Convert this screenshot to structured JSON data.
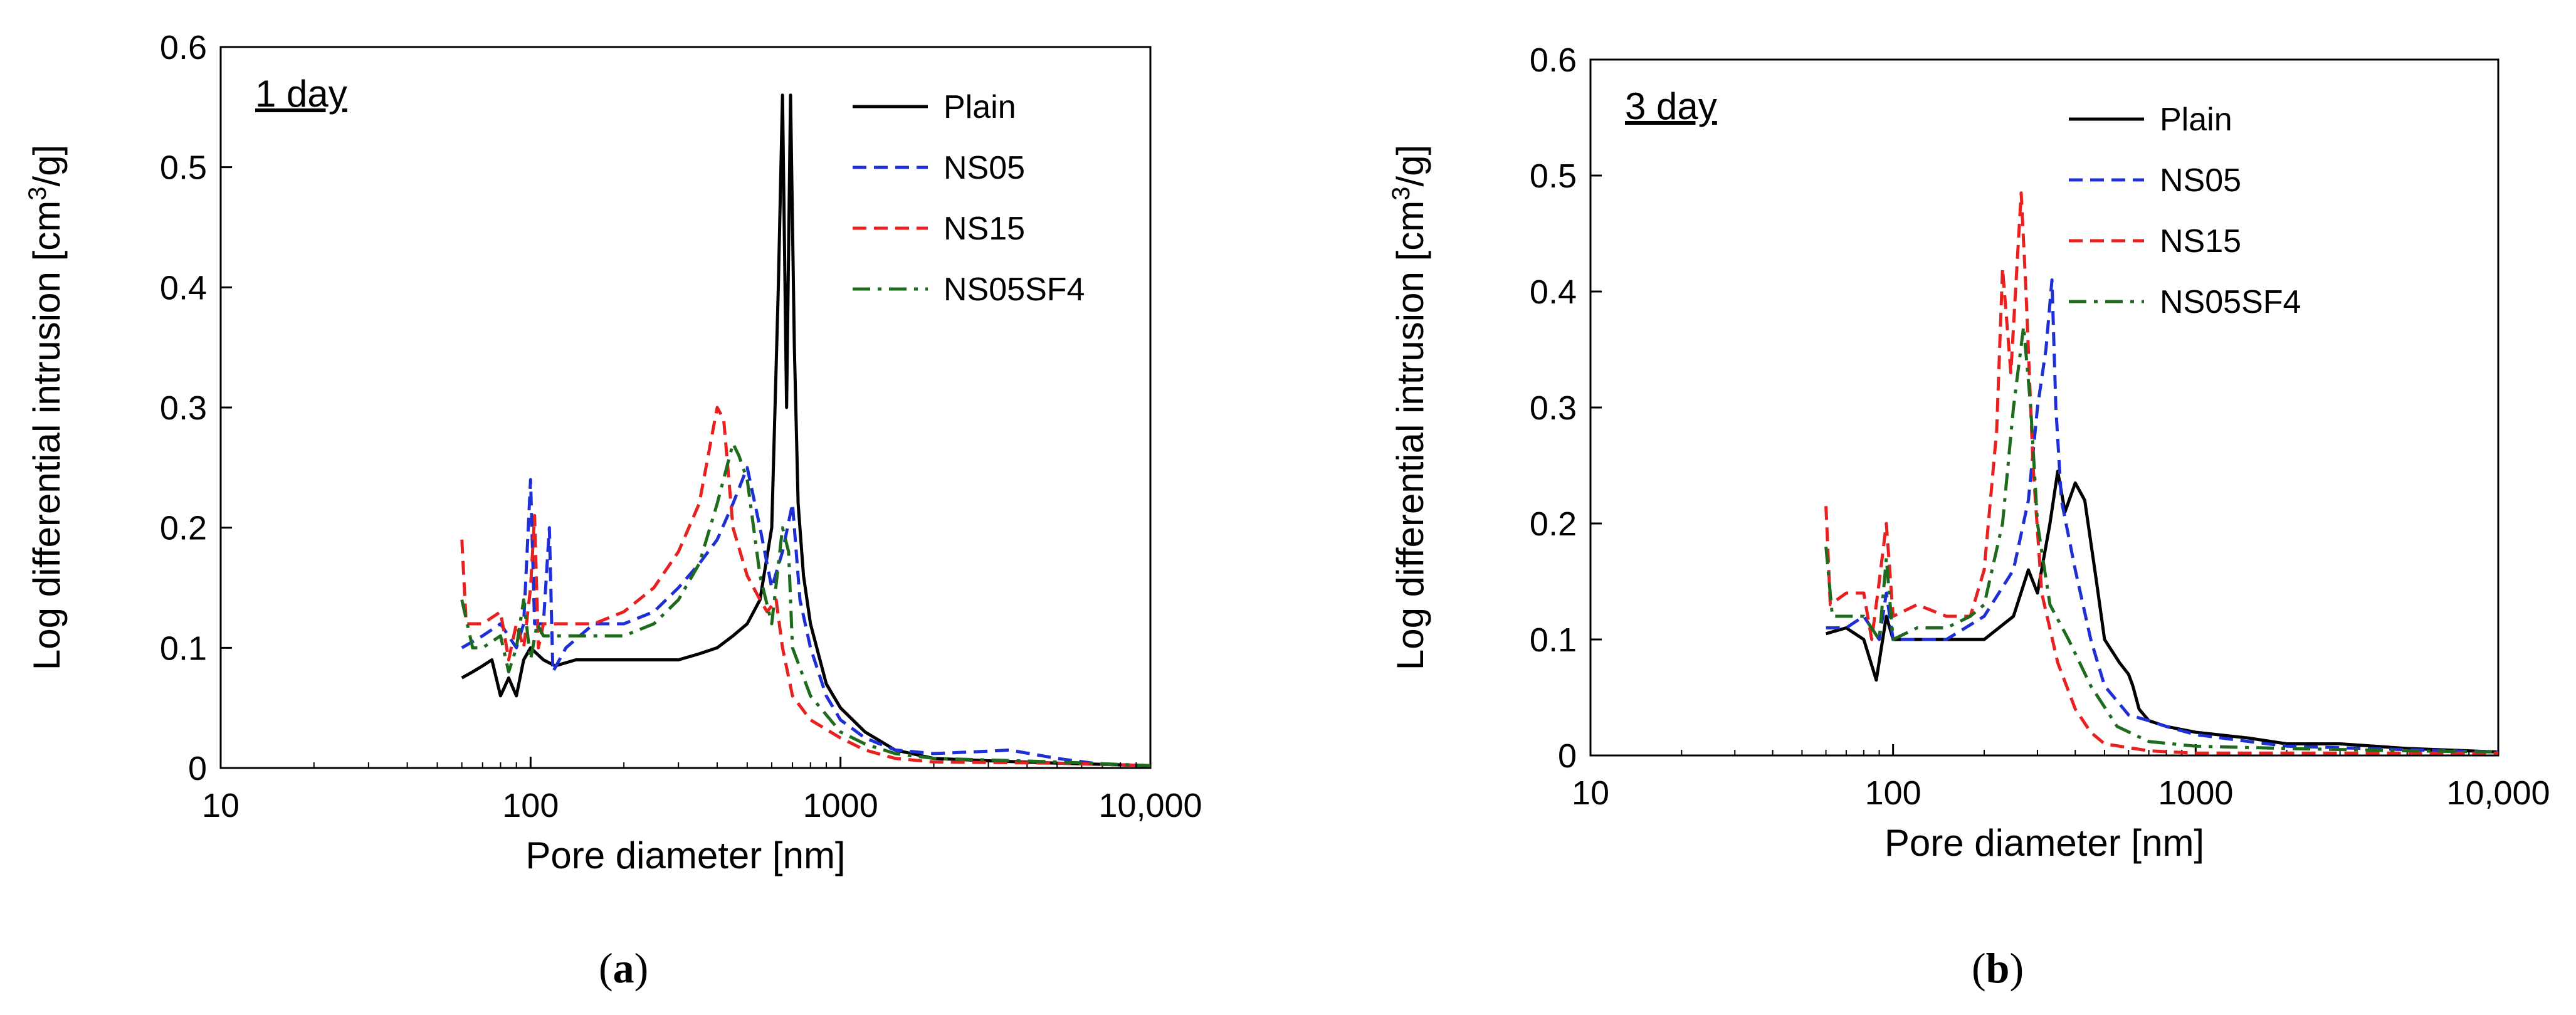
{
  "chart_data": [
    {
      "type": "line",
      "panel_label": "a",
      "annotation": "1 day",
      "xlabel": "Pore diameter [nm]",
      "ylabel_main": "Log differential intrusion [cm",
      "ylabel_sup": "3",
      "ylabel_tail": "/g]",
      "x_scale": "log",
      "xlim": [
        10,
        10000
      ],
      "ylim": [
        0,
        0.6
      ],
      "x_ticks": [
        10,
        100,
        1000,
        10000
      ],
      "x_tick_labels": [
        "10",
        "100",
        "1000",
        "10,000"
      ],
      "y_ticks": [
        0,
        0.1,
        0.2,
        0.3,
        0.4,
        0.5,
        0.6
      ],
      "y_tick_labels": [
        "0",
        "0.1",
        "0.2",
        "0.3",
        "0.4",
        "0.5",
        "0.6"
      ],
      "legend_position": "top-right",
      "series": [
        {
          "name": "Plain",
          "color": "#000000",
          "dash": "solid",
          "points": [
            [
              60,
              0.075
            ],
            [
              65,
              0.08
            ],
            [
              70,
              0.085
            ],
            [
              75,
              0.09
            ],
            [
              80,
              0.06
            ],
            [
              85,
              0.075
            ],
            [
              90,
              0.06
            ],
            [
              95,
              0.09
            ],
            [
              100,
              0.1
            ],
            [
              110,
              0.09
            ],
            [
              120,
              0.085
            ],
            [
              140,
              0.09
            ],
            [
              160,
              0.09
            ],
            [
              200,
              0.09
            ],
            [
              300,
              0.09
            ],
            [
              350,
              0.095
            ],
            [
              400,
              0.1
            ],
            [
              450,
              0.11
            ],
            [
              500,
              0.12
            ],
            [
              550,
              0.14
            ],
            [
              600,
              0.2
            ],
            [
              630,
              0.4
            ],
            [
              650,
              0.56
            ],
            [
              670,
              0.3
            ],
            [
              690,
              0.56
            ],
            [
              710,
              0.35
            ],
            [
              730,
              0.22
            ],
            [
              760,
              0.16
            ],
            [
              800,
              0.12
            ],
            [
              900,
              0.07
            ],
            [
              1000,
              0.05
            ],
            [
              1200,
              0.03
            ],
            [
              1500,
              0.015
            ],
            [
              2000,
              0.008
            ],
            [
              3000,
              0.006
            ],
            [
              5000,
              0.004
            ],
            [
              10000,
              0.002
            ]
          ]
        },
        {
          "name": "NS05",
          "color": "#1f2fd6",
          "dash": "dashed",
          "points": [
            [
              60,
              0.1
            ],
            [
              70,
              0.11
            ],
            [
              80,
              0.12
            ],
            [
              90,
              0.1
            ],
            [
              95,
              0.12
            ],
            [
              100,
              0.24
            ],
            [
              103,
              0.12
            ],
            [
              110,
              0.12
            ],
            [
              115,
              0.2
            ],
            [
              118,
              0.08
            ],
            [
              130,
              0.1
            ],
            [
              160,
              0.12
            ],
            [
              200,
              0.12
            ],
            [
              250,
              0.13
            ],
            [
              300,
              0.15
            ],
            [
              350,
              0.17
            ],
            [
              400,
              0.19
            ],
            [
              450,
              0.22
            ],
            [
              500,
              0.25
            ],
            [
              550,
              0.2
            ],
            [
              600,
              0.15
            ],
            [
              650,
              0.18
            ],
            [
              700,
              0.22
            ],
            [
              740,
              0.14
            ],
            [
              800,
              0.1
            ],
            [
              900,
              0.06
            ],
            [
              1000,
              0.04
            ],
            [
              1200,
              0.025
            ],
            [
              1500,
              0.015
            ],
            [
              2000,
              0.012
            ],
            [
              3000,
              0.014
            ],
            [
              3500,
              0.015
            ],
            [
              5000,
              0.008
            ],
            [
              7000,
              0.003
            ],
            [
              10000,
              0.002
            ]
          ]
        },
        {
          "name": "NS15",
          "color": "#e82020",
          "dash": "dashed",
          "points": [
            [
              60,
              0.19
            ],
            [
              62,
              0.12
            ],
            [
              70,
              0.12
            ],
            [
              80,
              0.13
            ],
            [
              85,
              0.09
            ],
            [
              90,
              0.12
            ],
            [
              95,
              0.1
            ],
            [
              100,
              0.15
            ],
            [
              103,
              0.21
            ],
            [
              106,
              0.1
            ],
            [
              110,
              0.12
            ],
            [
              130,
              0.12
            ],
            [
              160,
              0.12
            ],
            [
              200,
              0.13
            ],
            [
              250,
              0.15
            ],
            [
              300,
              0.18
            ],
            [
              350,
              0.22
            ],
            [
              400,
              0.3
            ],
            [
              420,
              0.29
            ],
            [
              450,
              0.2
            ],
            [
              500,
              0.16
            ],
            [
              550,
              0.14
            ],
            [
              580,
              0.13
            ],
            [
              620,
              0.14
            ],
            [
              650,
              0.1
            ],
            [
              700,
              0.06
            ],
            [
              800,
              0.04
            ],
            [
              1000,
              0.025
            ],
            [
              1200,
              0.015
            ],
            [
              1500,
              0.008
            ],
            [
              2000,
              0.005
            ],
            [
              5000,
              0.004
            ],
            [
              10000,
              0.002
            ]
          ]
        },
        {
          "name": "NS05SF4",
          "color": "#1e6b1e",
          "dash": "dashdot",
          "points": [
            [
              60,
              0.14
            ],
            [
              65,
              0.1
            ],
            [
              70,
              0.1
            ],
            [
              80,
              0.11
            ],
            [
              85,
              0.08
            ],
            [
              90,
              0.1
            ],
            [
              95,
              0.14
            ],
            [
              100,
              0.09
            ],
            [
              105,
              0.12
            ],
            [
              110,
              0.11
            ],
            [
              130,
              0.11
            ],
            [
              160,
              0.11
            ],
            [
              200,
              0.11
            ],
            [
              250,
              0.12
            ],
            [
              300,
              0.14
            ],
            [
              350,
              0.17
            ],
            [
              400,
              0.22
            ],
            [
              450,
              0.27
            ],
            [
              470,
              0.26
            ],
            [
              500,
              0.24
            ],
            [
              550,
              0.16
            ],
            [
              600,
              0.12
            ],
            [
              650,
              0.2
            ],
            [
              680,
              0.18
            ],
            [
              700,
              0.1
            ],
            [
              800,
              0.06
            ],
            [
              1000,
              0.03
            ],
            [
              1200,
              0.02
            ],
            [
              1500,
              0.012
            ],
            [
              2000,
              0.008
            ],
            [
              5000,
              0.005
            ],
            [
              10000,
              0.002
            ]
          ]
        }
      ]
    },
    {
      "type": "line",
      "panel_label": "b",
      "annotation": "3 day",
      "xlabel": "Pore diameter [nm]",
      "ylabel_main": "Log differential intrusion [cm",
      "ylabel_sup": "3",
      "ylabel_tail": "/g]",
      "x_scale": "log",
      "xlim": [
        10,
        10000
      ],
      "ylim": [
        0,
        0.6
      ],
      "x_ticks": [
        10,
        100,
        1000,
        10000
      ],
      "x_tick_labels": [
        "10",
        "100",
        "1000",
        "10,000"
      ],
      "y_ticks": [
        0,
        0.1,
        0.2,
        0.3,
        0.4,
        0.5,
        0.6
      ],
      "y_tick_labels": [
        "0",
        "0.1",
        "0.2",
        "0.3",
        "0.4",
        "0.5",
        "0.6"
      ],
      "legend_position": "top-right",
      "series": [
        {
          "name": "Plain",
          "color": "#000000",
          "dash": "solid",
          "points": [
            [
              60,
              0.105
            ],
            [
              70,
              0.11
            ],
            [
              80,
              0.1
            ],
            [
              88,
              0.065
            ],
            [
              95,
              0.12
            ],
            [
              100,
              0.1
            ],
            [
              120,
              0.1
            ],
            [
              150,
              0.1
            ],
            [
              200,
              0.1
            ],
            [
              250,
              0.12
            ],
            [
              280,
              0.16
            ],
            [
              300,
              0.14
            ],
            [
              330,
              0.2
            ],
            [
              350,
              0.245
            ],
            [
              370,
              0.21
            ],
            [
              400,
              0.235
            ],
            [
              430,
              0.22
            ],
            [
              470,
              0.15
            ],
            [
              500,
              0.1
            ],
            [
              560,
              0.08
            ],
            [
              600,
              0.07
            ],
            [
              620,
              0.06
            ],
            [
              650,
              0.04
            ],
            [
              700,
              0.03
            ],
            [
              800,
              0.025
            ],
            [
              1000,
              0.02
            ],
            [
              1500,
              0.015
            ],
            [
              2000,
              0.01
            ],
            [
              3000,
              0.01
            ],
            [
              5000,
              0.006
            ],
            [
              10000,
              0.003
            ]
          ]
        },
        {
          "name": "NS05",
          "color": "#1f2fd6",
          "dash": "dashed",
          "points": [
            [
              60,
              0.11
            ],
            [
              70,
              0.11
            ],
            [
              80,
              0.12
            ],
            [
              90,
              0.1
            ],
            [
              95,
              0.14
            ],
            [
              100,
              0.1
            ],
            [
              120,
              0.1
            ],
            [
              150,
              0.1
            ],
            [
              200,
              0.12
            ],
            [
              250,
              0.16
            ],
            [
              280,
              0.22
            ],
            [
              300,
              0.3
            ],
            [
              320,
              0.35
            ],
            [
              335,
              0.41
            ],
            [
              345,
              0.3
            ],
            [
              360,
              0.22
            ],
            [
              400,
              0.16
            ],
            [
              450,
              0.1
            ],
            [
              500,
              0.06
            ],
            [
              600,
              0.035
            ],
            [
              700,
              0.03
            ],
            [
              800,
              0.025
            ],
            [
              1000,
              0.018
            ],
            [
              1500,
              0.012
            ],
            [
              2000,
              0.008
            ],
            [
              5000,
              0.005
            ],
            [
              10000,
              0.003
            ]
          ]
        },
        {
          "name": "NS15",
          "color": "#e82020",
          "dash": "dashed",
          "points": [
            [
              60,
              0.215
            ],
            [
              62,
              0.13
            ],
            [
              70,
              0.14
            ],
            [
              80,
              0.14
            ],
            [
              85,
              0.1
            ],
            [
              90,
              0.15
            ],
            [
              95,
              0.2
            ],
            [
              100,
              0.12
            ],
            [
              120,
              0.13
            ],
            [
              150,
              0.12
            ],
            [
              180,
              0.12
            ],
            [
              200,
              0.16
            ],
            [
              220,
              0.28
            ],
            [
              230,
              0.42
            ],
            [
              245,
              0.33
            ],
            [
              265,
              0.485
            ],
            [
              275,
              0.4
            ],
            [
              290,
              0.25
            ],
            [
              310,
              0.14
            ],
            [
              350,
              0.08
            ],
            [
              400,
              0.04
            ],
            [
              450,
              0.02
            ],
            [
              500,
              0.01
            ],
            [
              700,
              0.004
            ],
            [
              1000,
              0.002
            ],
            [
              10000,
              0.002
            ]
          ]
        },
        {
          "name": "NS05SF4",
          "color": "#1e6b1e",
          "dash": "dashdot",
          "points": [
            [
              60,
              0.18
            ],
            [
              63,
              0.12
            ],
            [
              70,
              0.12
            ],
            [
              80,
              0.12
            ],
            [
              90,
              0.1
            ],
            [
              95,
              0.17
            ],
            [
              100,
              0.1
            ],
            [
              120,
              0.11
            ],
            [
              150,
              0.11
            ],
            [
              180,
              0.12
            ],
            [
              200,
              0.13
            ],
            [
              230,
              0.2
            ],
            [
              250,
              0.3
            ],
            [
              270,
              0.37
            ],
            [
              285,
              0.3
            ],
            [
              300,
              0.2
            ],
            [
              330,
              0.13
            ],
            [
              380,
              0.1
            ],
            [
              450,
              0.06
            ],
            [
              550,
              0.025
            ],
            [
              700,
              0.012
            ],
            [
              1000,
              0.008
            ],
            [
              2000,
              0.006
            ],
            [
              5000,
              0.004
            ],
            [
              10000,
              0.003
            ]
          ]
        }
      ]
    }
  ]
}
